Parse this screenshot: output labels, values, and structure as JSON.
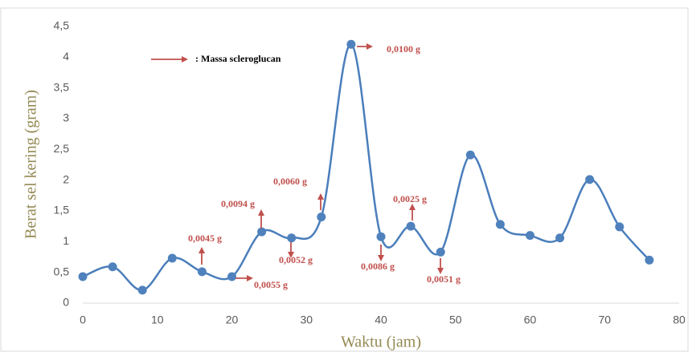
{
  "chart_data": {
    "type": "line",
    "x_label": "Waktu (jam)",
    "y_label": "Berat sel kering (gram)",
    "x": [
      0,
      4,
      8,
      12,
      16,
      20,
      24,
      28,
      32,
      36,
      40,
      44,
      48,
      52,
      56,
      60,
      64,
      68,
      72,
      76
    ],
    "series": [
      {
        "color": "#4a7ebb",
        "values": [
          0.43,
          0.59,
          0.21,
          0.73,
          0.51,
          0.43,
          1.16,
          1.06,
          1.4,
          4.21,
          1.08,
          1.25,
          0.83,
          2.41,
          1.28,
          1.1,
          1.06,
          2.01,
          1.24,
          0.7
        ]
      }
    ],
    "xlim": [
      0,
      80
    ],
    "xticks": [
      0,
      10,
      20,
      30,
      40,
      50,
      60,
      70,
      80
    ],
    "ylim": [
      0,
      4.5
    ],
    "yticks": [
      0,
      {
        "value": 0.5,
        "label": "0,5"
      },
      1,
      {
        "value": 1.5,
        "label": "1,5"
      },
      2,
      {
        "value": 2.5,
        "label": "2,5"
      },
      3,
      {
        "value": 3.5,
        "label": "3,5"
      },
      4,
      {
        "value": 4.5,
        "label": "4,5"
      }
    ],
    "grid": false,
    "annotation_color": "#c0504d",
    "legend_text": ": Massa scleroglucan",
    "annotations": [
      "0,0045 g",
      "0,0055 g",
      "0,0094 g",
      "0,0052 g",
      "0,0060 g",
      "0,0100 g",
      "0,0086 g",
      "0,0025 g",
      "0,0051 g"
    ]
  }
}
